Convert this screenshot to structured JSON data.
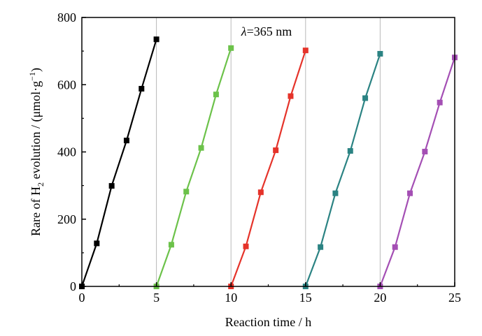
{
  "chart_data": {
    "type": "line",
    "xlabel": "Reaction time / h",
    "ylabel_parts": {
      "pre": "Rare of H",
      "sub": "2",
      "mid": " evolution / (μmol·g",
      "sup": "−1",
      "post": ")"
    },
    "annotation": {
      "italic": "λ",
      "rest": "=365 nm"
    },
    "xlim": [
      0,
      25
    ],
    "ylim": [
      0,
      800
    ],
    "x_ticks": [
      0,
      5,
      10,
      15,
      20,
      25
    ],
    "y_ticks": [
      0,
      200,
      400,
      600,
      800
    ],
    "cycle_dividers": [
      5,
      10,
      15,
      20,
      25
    ],
    "series": [
      {
        "color": "#000000",
        "points": [
          [
            0,
            0
          ],
          [
            1,
            128
          ],
          [
            2,
            299
          ],
          [
            3,
            434
          ],
          [
            4,
            588
          ],
          [
            5,
            735
          ]
        ]
      },
      {
        "color": "#6cc24a",
        "points": [
          [
            5,
            0
          ],
          [
            6,
            124
          ],
          [
            7,
            282
          ],
          [
            8,
            412
          ],
          [
            9,
            571
          ],
          [
            10,
            709
          ]
        ]
      },
      {
        "color": "#e5332a",
        "points": [
          [
            10,
            0
          ],
          [
            11,
            119
          ],
          [
            12,
            280
          ],
          [
            13,
            405
          ],
          [
            14,
            566
          ],
          [
            15,
            702
          ]
        ]
      },
      {
        "color": "#2b8383",
        "points": [
          [
            15,
            0
          ],
          [
            16,
            117
          ],
          [
            17,
            277
          ],
          [
            18,
            403
          ],
          [
            19,
            560
          ],
          [
            20,
            692
          ]
        ]
      },
      {
        "color": "#a44fb4",
        "points": [
          [
            20,
            0
          ],
          [
            21,
            117
          ],
          [
            22,
            277
          ],
          [
            23,
            401
          ],
          [
            24,
            547
          ],
          [
            25,
            681
          ]
        ]
      }
    ]
  }
}
